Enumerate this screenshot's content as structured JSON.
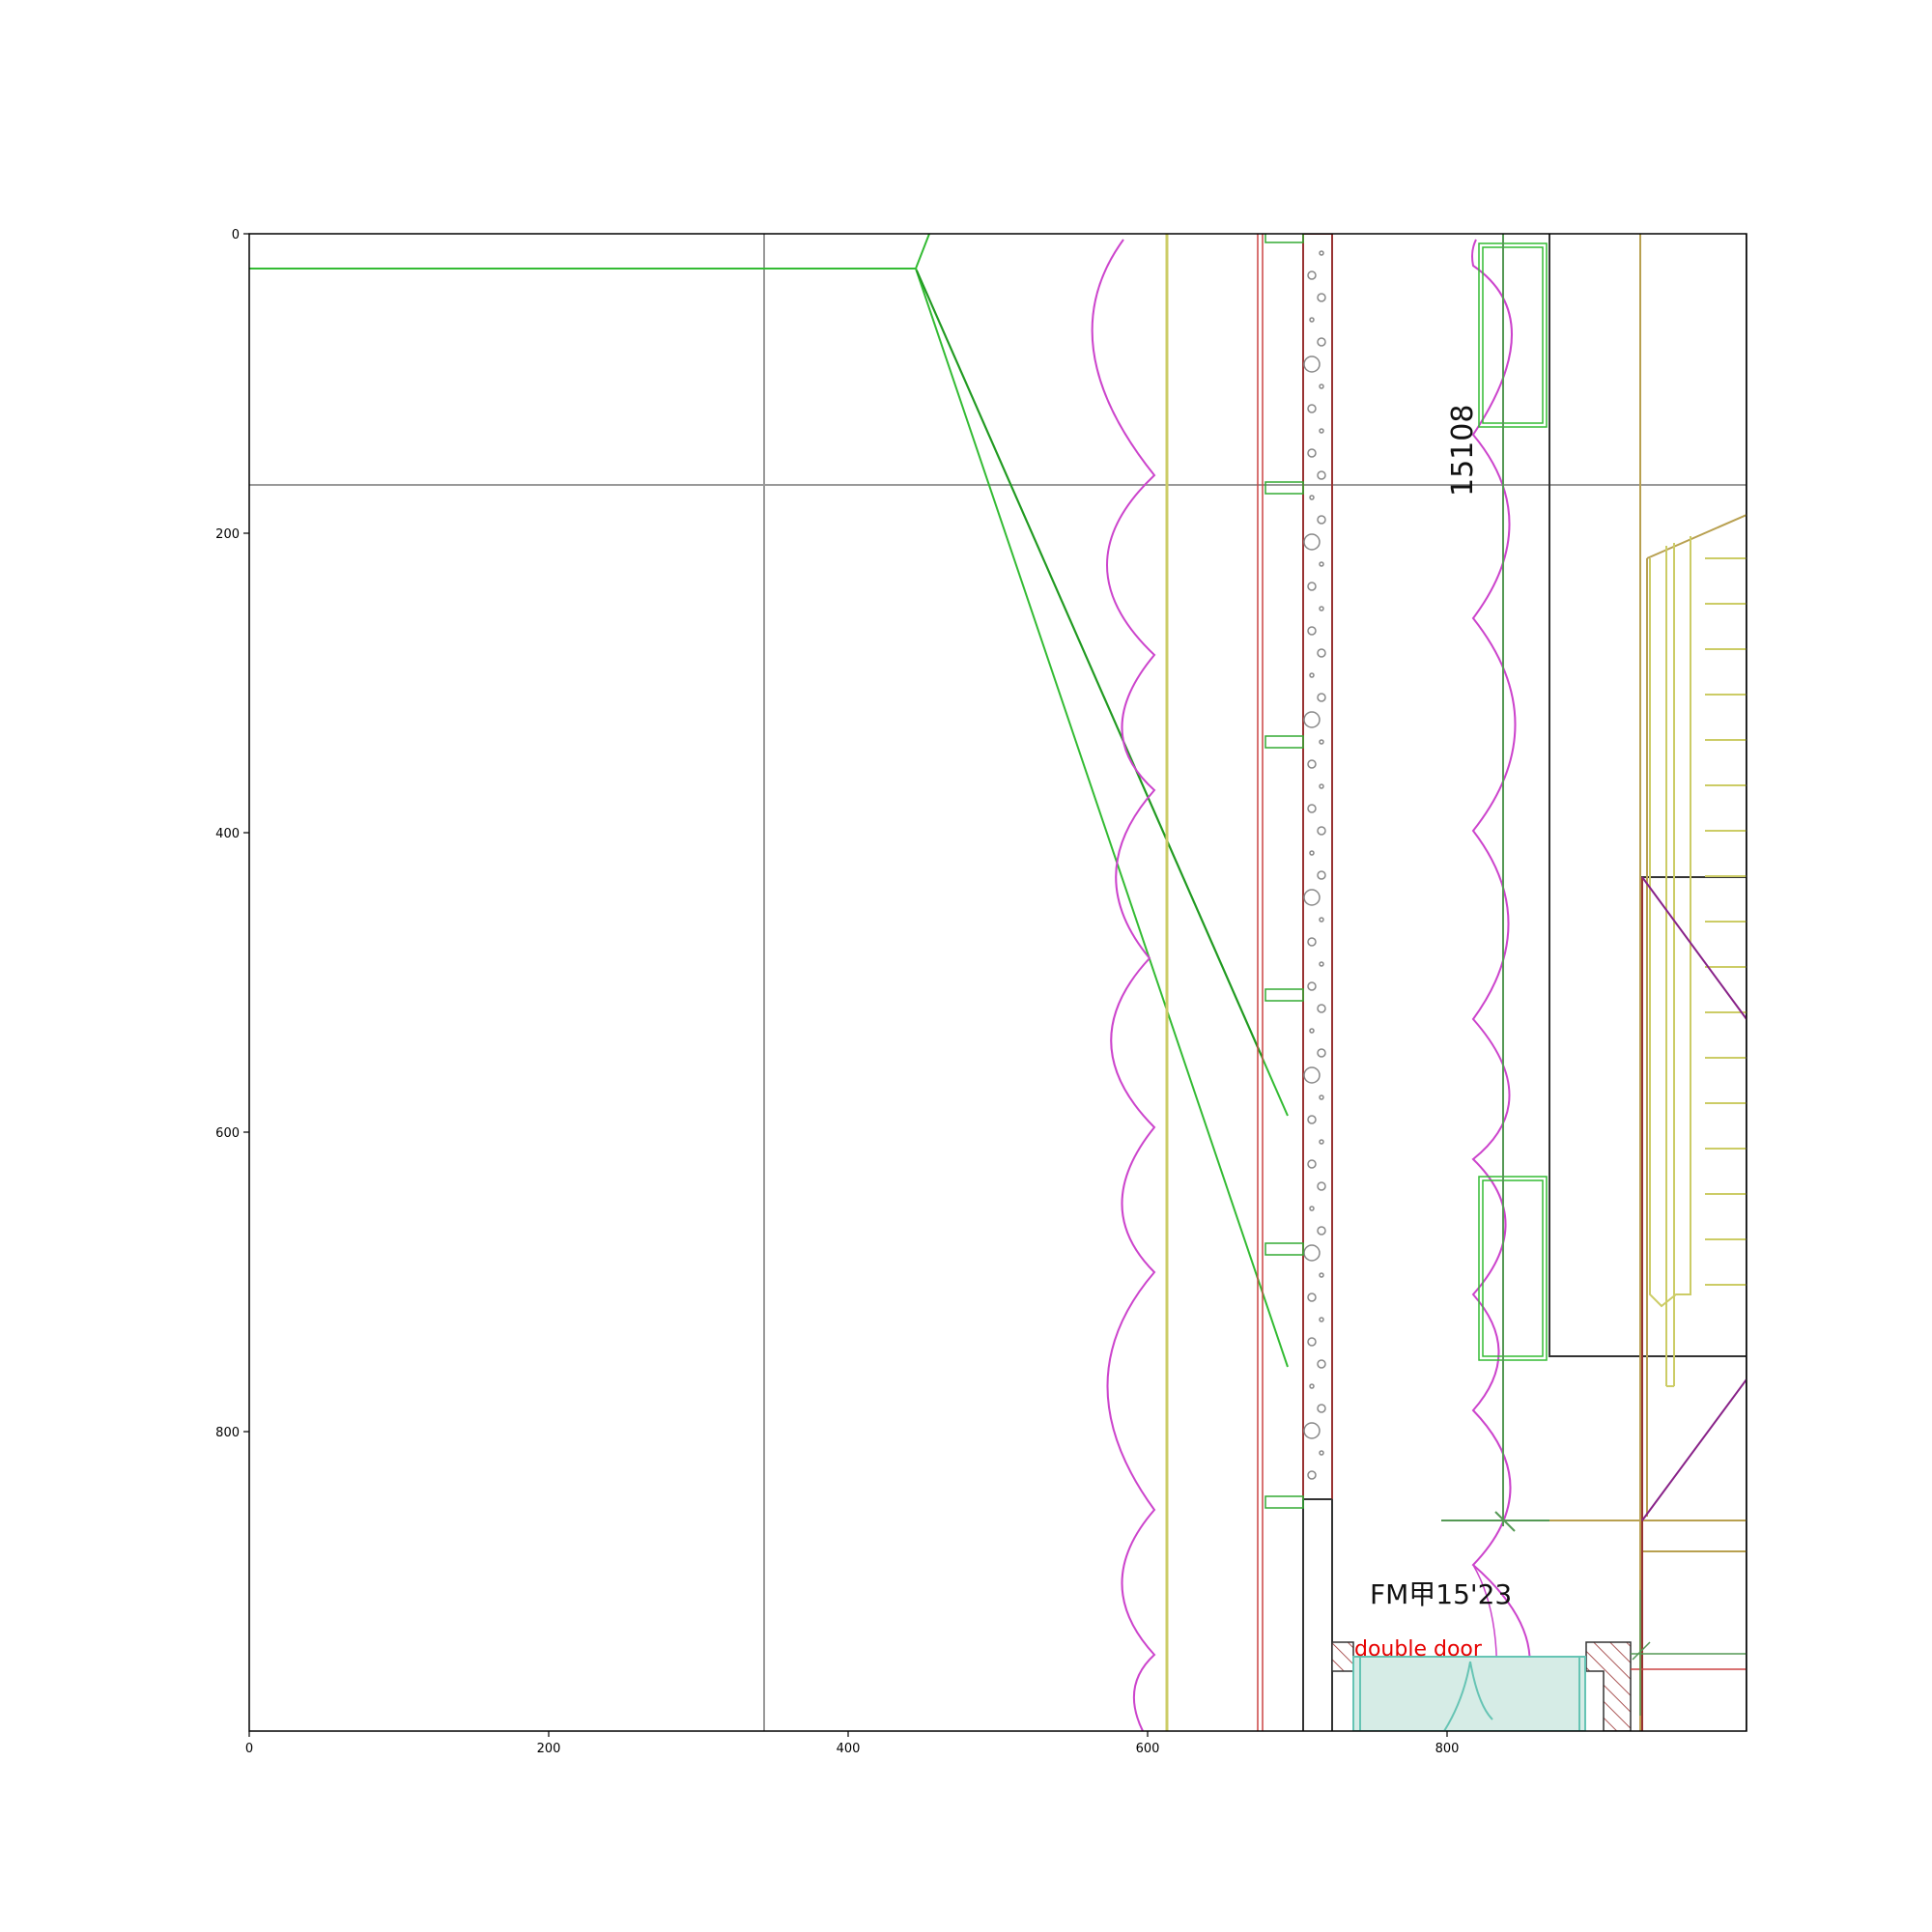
{
  "plot": {
    "x_ticks": [
      "0",
      "200",
      "400",
      "600",
      "800"
    ],
    "y_ticks": [
      "0",
      "200",
      "400",
      "600",
      "800"
    ],
    "xlim": [
      0,
      1000
    ],
    "ylim": [
      0,
      1000
    ],
    "y_axis": "inverted"
  },
  "annotations": {
    "dimension": "15108",
    "door_code": "FM甲15'23",
    "door_label": "double door"
  },
  "colors": {
    "frame": "#000000",
    "grid_line": "#999999",
    "green_line": "#33bb33",
    "magenta_curtain": "#cc44cc",
    "yellow_line": "#cccc66",
    "dark_red": "#993333",
    "olive": "#b8a050",
    "purple": "#882288",
    "teal_fill": "#d6ece6",
    "teal_line": "#66c4b4",
    "door_label": "#e60000"
  }
}
